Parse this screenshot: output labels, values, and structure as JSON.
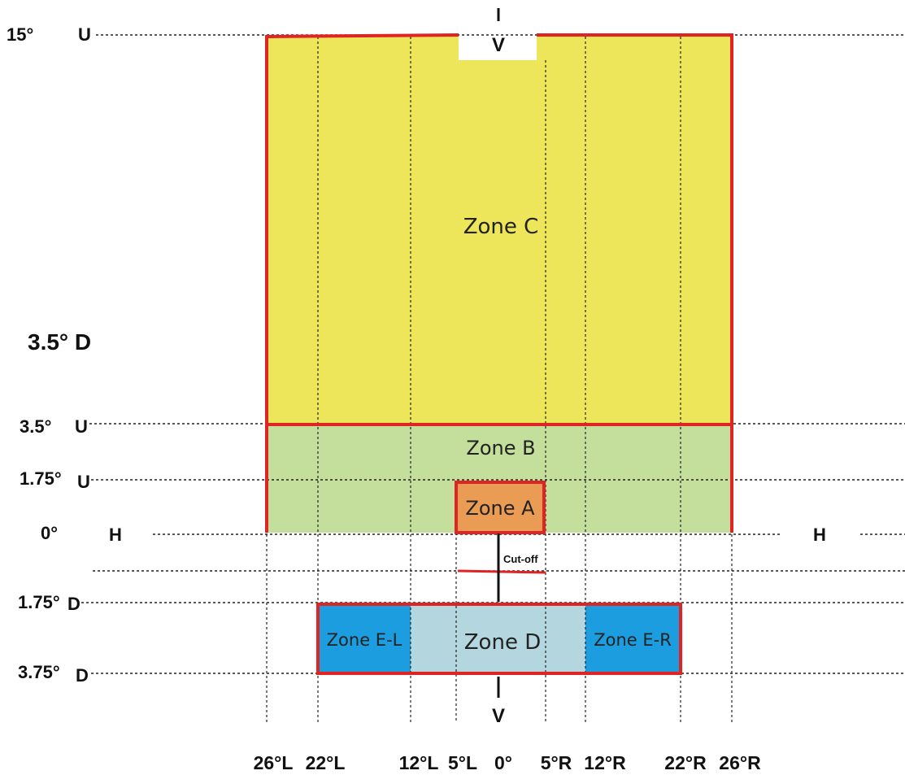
{
  "vertical_labels": {
    "u15": "15°",
    "u15_mark": "U",
    "u35": "3.5°",
    "u35_mark": "U",
    "u175": "1.75°",
    "u175_mark": "U",
    "h0": "0°",
    "d175": "1.75°",
    "d175_mark": "D",
    "d375": "3.75°",
    "d375_mark": "D",
    "extra": "3.5° D"
  },
  "h_marks": {
    "left": "H",
    "right": "H"
  },
  "v_marks": {
    "top": "V",
    "bottom": "V"
  },
  "zones": {
    "c": "Zone C",
    "b": "Zone B",
    "a": "Zone A",
    "d": "Zone D",
    "el": "Zone E-L",
    "er": "Zone E-R"
  },
  "cutoff_label": "Cut-off",
  "bottom_labels": {
    "l26": "26°L",
    "l22": "22°L",
    "l12": "12°L",
    "l5": "5°L",
    "c0": "0°",
    "r5": "5°R",
    "r12": "12°R",
    "r22": "22°R",
    "r26": "26°R"
  },
  "colors": {
    "zone_c": "#ede55a",
    "zone_b": "#c4df9b",
    "zone_a": "#eb9c54",
    "zone_d": "#b4d6df",
    "zone_e": "#1b9de0",
    "border_red": "#e02424"
  }
}
